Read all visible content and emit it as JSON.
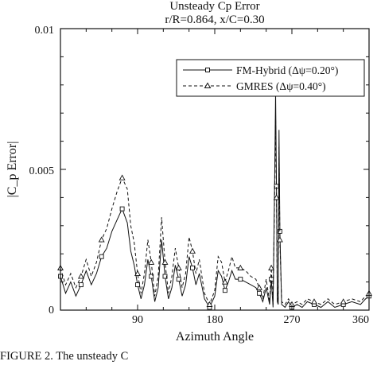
{
  "chart_data": {
    "type": "line",
    "title": "Unsteady Cp Error",
    "subtitle": "r/R=0.864, x/C=0.30",
    "xlabel": "Azimuth Angle",
    "ylabel": "|C_p Error|",
    "xlim": [
      0,
      360
    ],
    "ylim": [
      0,
      0.01
    ],
    "xticks": [
      "90",
      "180",
      "270",
      "360"
    ],
    "yticks": [
      "0",
      "0.005",
      "0.01"
    ],
    "grid": false,
    "legend_position": "top-right",
    "series": [
      {
        "name": "FM-Hybrid (Δψ=0.20°)",
        "style": "solid",
        "marker": "square",
        "color": "#111111",
        "x": [
          0,
          6,
          12,
          18,
          24,
          30,
          36,
          42,
          48,
          54,
          60,
          66,
          72,
          78,
          82,
          86,
          90,
          94,
          98,
          102,
          106,
          110,
          114,
          118,
          122,
          126,
          130,
          134,
          138,
          142,
          146,
          150,
          154,
          158,
          162,
          168,
          174,
          180,
          184,
          188,
          192,
          196,
          200,
          204,
          210,
          216,
          222,
          228,
          232,
          236,
          240,
          244,
          246,
          248,
          250,
          251,
          252,
          253,
          254,
          255,
          256,
          258,
          262,
          266,
          270,
          276,
          282,
          288,
          296,
          304,
          312,
          320,
          330,
          340,
          350,
          356,
          360
        ],
        "y": [
          0.0012,
          0.0006,
          0.001,
          0.0005,
          0.0009,
          0.0014,
          0.0009,
          0.0013,
          0.0019,
          0.0022,
          0.0028,
          0.0032,
          0.0036,
          0.0031,
          0.0021,
          0.0016,
          0.0009,
          0.0004,
          0.0009,
          0.0018,
          0.0012,
          0.0003,
          0.0008,
          0.0025,
          0.0012,
          0.0004,
          0.0008,
          0.0016,
          0.0011,
          0.0005,
          0.0009,
          0.0019,
          0.0015,
          0.0009,
          0.0013,
          0.0004,
          0.0001,
          0.0005,
          0.0014,
          0.0012,
          0.0007,
          0.001,
          0.0014,
          0.0011,
          0.0011,
          0.001,
          0.0009,
          0.0008,
          0.0006,
          0.0003,
          0.0008,
          0.0002,
          0.0011,
          0.0001,
          0.0048,
          0.0077,
          0.0044,
          0.0003,
          0.0002,
          0.0064,
          0.0028,
          0.0002,
          0.0001,
          0.0003,
          0.0001,
          0.0002,
          0.0001,
          0.0003,
          0.0002,
          0.0001,
          0.0003,
          0.0001,
          0.0002,
          0.0003,
          0.0002,
          0.0004,
          0.0005
        ]
      },
      {
        "name": "GMRES (Δψ=0.40°)",
        "style": "dashed",
        "marker": "triangle",
        "color": "#111111",
        "x": [
          0,
          6,
          12,
          18,
          24,
          30,
          36,
          42,
          48,
          54,
          60,
          66,
          72,
          78,
          82,
          86,
          90,
          94,
          98,
          102,
          106,
          110,
          114,
          118,
          122,
          126,
          130,
          134,
          138,
          142,
          146,
          150,
          154,
          158,
          162,
          168,
          174,
          180,
          184,
          188,
          192,
          196,
          200,
          204,
          210,
          216,
          222,
          228,
          232,
          236,
          240,
          244,
          246,
          248,
          250,
          251,
          252,
          253,
          254,
          255,
          256,
          258,
          262,
          266,
          270,
          276,
          282,
          288,
          296,
          304,
          312,
          320,
          330,
          340,
          350,
          356,
          360
        ],
        "y": [
          0.0015,
          0.0009,
          0.0013,
          0.0008,
          0.0012,
          0.0018,
          0.0012,
          0.0017,
          0.0025,
          0.0029,
          0.0036,
          0.0042,
          0.0047,
          0.0043,
          0.003,
          0.0024,
          0.0013,
          0.0006,
          0.0013,
          0.0025,
          0.0017,
          0.0005,
          0.0012,
          0.0033,
          0.0017,
          0.0006,
          0.0012,
          0.0022,
          0.0015,
          0.0008,
          0.0013,
          0.0026,
          0.0021,
          0.0013,
          0.0018,
          0.0006,
          0.0002,
          0.0007,
          0.0019,
          0.0017,
          0.001,
          0.0014,
          0.0019,
          0.0015,
          0.0015,
          0.0014,
          0.0012,
          0.0011,
          0.0008,
          0.0004,
          0.0011,
          0.0003,
          0.0015,
          0.0002,
          0.0043,
          0.0069,
          0.004,
          0.0004,
          0.0003,
          0.0058,
          0.0025,
          0.0003,
          0.0002,
          0.0004,
          0.0002,
          0.0003,
          0.0002,
          0.0004,
          0.0003,
          0.0002,
          0.0004,
          0.0002,
          0.0003,
          0.0004,
          0.0003,
          0.0005,
          0.0006
        ]
      }
    ]
  },
  "caption": "FIGURE 2.  The unsteady C"
}
